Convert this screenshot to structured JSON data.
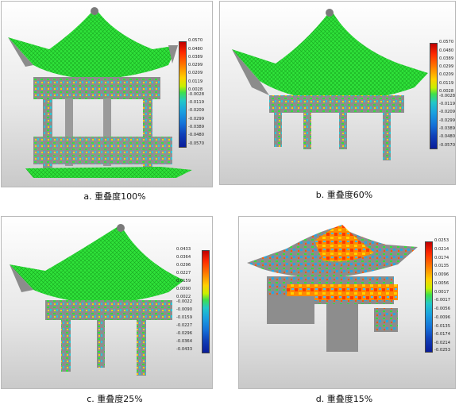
{
  "panels": [
    {
      "caption": "a. 重叠度100%",
      "scale": [
        "0.0570",
        "0.0480",
        "0.0389",
        "0.0299",
        "0.0209",
        "0.0119",
        "0.0028",
        "-0.0028",
        "-0.0119",
        "-0.0209",
        "-0.0299",
        "-0.0389",
        "-0.0480",
        "-0.0570"
      ]
    },
    {
      "caption": "b. 重叠度60%",
      "scale": [
        "0.0570",
        "0.0480",
        "0.0389",
        "0.0299",
        "0.0209",
        "0.0119",
        "0.0028",
        "-0.0028",
        "-0.0119",
        "-0.0209",
        "-0.0299",
        "-0.0389",
        "-0.0480",
        "-0.0570"
      ]
    },
    {
      "caption": "c. 重叠度25%",
      "scale": [
        "0.0433",
        "0.0364",
        "0.0296",
        "0.0227",
        "0.0159",
        "0.0090",
        "0.0022",
        "-0.0022",
        "-0.0090",
        "-0.0159",
        "-0.0227",
        "-0.0296",
        "-0.0364",
        "-0.0433"
      ]
    },
    {
      "caption": "d. 重叠度15%",
      "scale": [
        "0.0253",
        "0.0214",
        "0.0174",
        "0.0135",
        "0.0096",
        "0.0056",
        "0.0017",
        "-0.0017",
        "-0.0056",
        "-0.0096",
        "-0.0135",
        "-0.0174",
        "-0.0214",
        "-0.0253"
      ]
    }
  ],
  "colors": {
    "scale_gradient": [
      "#c00000",
      "#ff2a00",
      "#ff7a00",
      "#ffd000",
      "#c8f000",
      "#5fe04a",
      "#1fd24a",
      "#22c8c8",
      "#1aa0e0",
      "#1470d8",
      "#1040b8",
      "#0a1c9a"
    ],
    "point_cloud_main": "#2fe13a",
    "point_cloud_gray": "#8c8c8c"
  }
}
